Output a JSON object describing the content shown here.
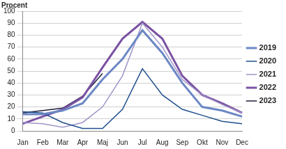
{
  "chart_data": {
    "type": "line",
    "y_label": "Procent",
    "categories": [
      "Jan",
      "Feb",
      "Mar",
      "Apr",
      "Maj",
      "Jun",
      "Jul",
      "Aug",
      "Sep",
      "Okt",
      "Nov",
      "Dec"
    ],
    "series": [
      {
        "name": "2019",
        "color": "#6b87c4",
        "values": [
          14,
          14,
          17,
          23,
          43,
          60,
          84,
          65,
          40,
          20,
          17,
          12
        ]
      },
      {
        "name": "2020",
        "color": "#1f4e8c",
        "values": [
          16,
          15,
          7,
          2,
          2,
          18,
          52,
          30,
          18,
          13,
          8,
          6
        ]
      },
      {
        "name": "2021",
        "color": "#a094c8",
        "values": [
          7,
          6,
          3,
          7,
          20,
          46,
          90,
          70,
          43,
          30,
          22,
          15
        ]
      },
      {
        "name": "2022",
        "color": "#7b52a3",
        "values": [
          6,
          12,
          18,
          28,
          53,
          77,
          91,
          77,
          46,
          30,
          23,
          15
        ]
      },
      {
        "name": "2023",
        "color": "#1c1c3c",
        "values": [
          15,
          17,
          19,
          29,
          48,
          null,
          null,
          null,
          null,
          null,
          null,
          null
        ]
      }
    ],
    "ylim": [
      0,
      100
    ],
    "yticks": [
      0,
      10,
      20,
      30,
      40,
      50,
      60,
      70,
      80,
      90,
      100
    ],
    "grid": true,
    "legend": "right"
  }
}
